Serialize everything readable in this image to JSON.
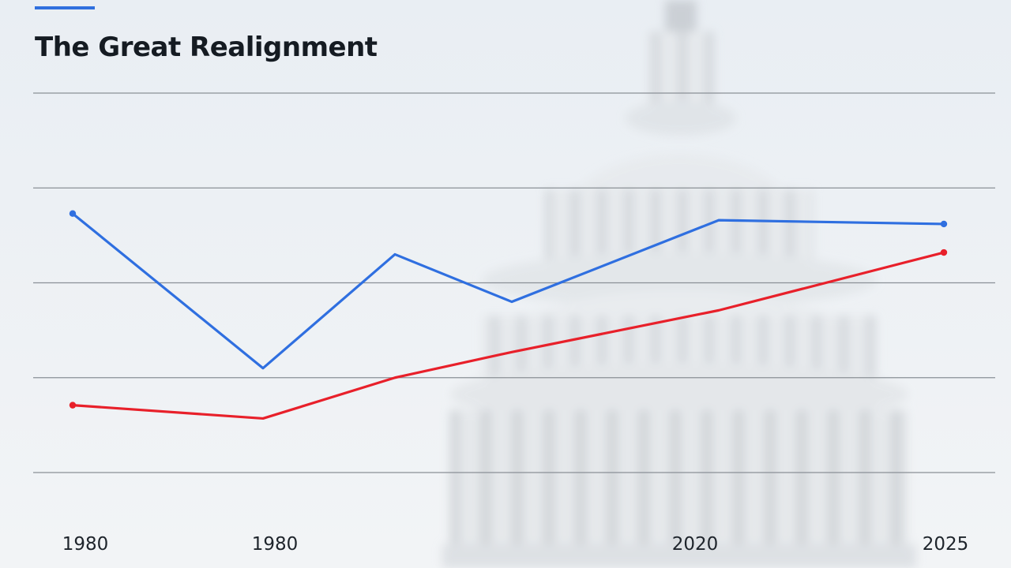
{
  "chart_data": {
    "type": "line",
    "title": "The Great Realignment",
    "x_tick_labels": [
      "1980",
      "1980",
      "2020",
      "2025"
    ],
    "x": [
      0,
      1,
      2,
      3,
      4,
      5,
      6,
      7
    ],
    "ylim": [
      0,
      4
    ],
    "gridlines": 5,
    "grid": true,
    "series": [
      {
        "color": "#2f6fe0",
        "values": [
          2.73,
          1.1,
          2.3,
          1.8,
          null,
          2.66,
          null,
          2.62
        ]
      },
      {
        "color": "#e8202a",
        "values": [
          0.71,
          0.57,
          1.0,
          1.27,
          null,
          1.71,
          null,
          2.32
        ]
      }
    ]
  }
}
